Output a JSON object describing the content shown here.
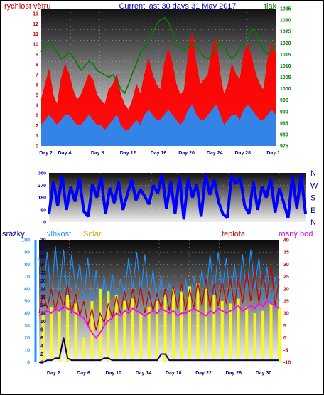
{
  "chart_data": [
    {
      "type": "line",
      "title": "Current last 30 days 31 May 2017",
      "left_axis_label": "rychlost větru",
      "right_axis_label": "tlak",
      "left_ticks": [
        "0",
        "1",
        "2",
        "3",
        "4",
        "5",
        "6",
        "7",
        "8",
        "9",
        "10",
        "11",
        "12",
        "13"
      ],
      "right_ticks": [
        "975",
        "980",
        "985",
        "990",
        "995",
        "1000",
        "1005",
        "1010",
        "1015",
        "1020",
        "1025",
        "1030",
        "1035"
      ],
      "x_ticks": [
        "Day 2",
        "Day 4",
        "Day 8",
        "Day 12",
        "Day 16",
        "Day 20",
        "Day 24",
        "Day 28",
        "Day 1"
      ],
      "ylim_left": [
        0,
        13.5
      ],
      "ylim_right": [
        975,
        1035
      ],
      "grid": true,
      "series": [
        {
          "role": "wind-gust",
          "color": "#ff0000",
          "axis": "left",
          "values": [
            4.5,
            6,
            7.5,
            5,
            4,
            6.5,
            8,
            7,
            5.5,
            4.5,
            5,
            6,
            7,
            6.5,
            5,
            4.5,
            4,
            5.5,
            6,
            7,
            5,
            4,
            3.5,
            4.5,
            6,
            5,
            7,
            8.5,
            7,
            6,
            5.5,
            8,
            9.5,
            8,
            6,
            5,
            5.5,
            9,
            11,
            8,
            6,
            6.5,
            7,
            9.5,
            10.5,
            7,
            5,
            6,
            8,
            7,
            6.5,
            9,
            10,
            8.5,
            7,
            6,
            5.5,
            8.5,
            10,
            9
          ]
        },
        {
          "role": "wind-average",
          "color": "#1e90ff",
          "axis": "left",
          "values": [
            2,
            2.5,
            3,
            2.5,
            2,
            2.5,
            3,
            3,
            2.5,
            2,
            2,
            2.5,
            3,
            2.5,
            2,
            2,
            1.5,
            2,
            2.5,
            3,
            2,
            1.5,
            1.5,
            2,
            2.5,
            2,
            3,
            3.5,
            3,
            2.5,
            2.5,
            3,
            3.5,
            3,
            2.5,
            2,
            2.5,
            3.5,
            4,
            3,
            2.5,
            2.5,
            3,
            3.5,
            4,
            3,
            2,
            2.5,
            3,
            3,
            2.5,
            3.5,
            4,
            3.5,
            3,
            2.5,
            2.5,
            3,
            3.5,
            3
          ]
        },
        {
          "role": "pressure",
          "color": "#008000",
          "axis": "right",
          "values": [
            1016,
            1019,
            1020,
            1018,
            1016,
            1013,
            1014,
            1016,
            1014,
            1011,
            1008,
            1010,
            1012,
            1011,
            1008,
            1007,
            1006,
            1005,
            1006,
            1004,
            1000,
            998,
            1002,
            1007,
            1011,
            1016,
            1018,
            1021,
            1024,
            1028,
            1030,
            1031,
            1029,
            1025,
            1020,
            1018,
            1017,
            1018,
            1019,
            1018,
            1016,
            1014,
            1013,
            1015,
            1018,
            1020,
            1019,
            1015,
            1013,
            1015,
            1018,
            1019,
            1022,
            1026,
            1025,
            1020,
            1017,
            1015,
            1017,
            1019
          ]
        }
      ]
    },
    {
      "type": "line",
      "title": "",
      "left_ticks": [
        "0",
        "90",
        "180",
        "270",
        "360"
      ],
      "right_labels": [
        "N",
        "W",
        "S",
        "E",
        "N"
      ],
      "ylim": [
        0,
        360
      ],
      "series": [
        {
          "role": "wind-direction",
          "color": "#0000ff",
          "values": [
            60,
            300,
            120,
            340,
            90,
            260,
            150,
            320,
            80,
            40,
            280,
            180,
            330,
            60,
            250,
            140,
            300,
            90,
            200,
            310,
            160,
            240,
            190,
            130,
            270,
            210,
            350,
            100,
            300,
            60,
            340,
            20,
            320,
            180,
            280,
            40,
            350,
            200,
            310,
            150,
            60,
            30,
            340,
            280,
            330,
            120,
            60,
            300,
            90,
            260,
            180,
            320,
            70,
            250,
            140,
            30,
            340,
            100,
            350,
            60
          ]
        }
      ]
    },
    {
      "type": "line",
      "labels": {
        "rain": "srážky",
        "humidity": "vlhkost",
        "solar": "Solar",
        "temperature": "teplota",
        "dewpoint": "rosný bod"
      },
      "left_ticks": [
        "0",
        "10",
        "20",
        "30",
        "40",
        "50",
        "60",
        "70",
        "80",
        "90",
        "100"
      ],
      "rain_ticks": [
        "0",
        "2",
        "4",
        "6",
        "8",
        "10",
        "12",
        "14",
        "16",
        "18",
        "20",
        "22",
        "24",
        "26",
        "28",
        "30"
      ],
      "right_ticks": [
        "-10",
        "-5",
        "0",
        "5",
        "10",
        "15",
        "20",
        "25",
        "30",
        "35",
        "40"
      ],
      "x_ticks": [
        "Day 2",
        "Day 6",
        "Day 10",
        "Day 14",
        "Day 18",
        "Day 22",
        "Day 26",
        "Day 30"
      ],
      "ylim_left": [
        0,
        100
      ],
      "ylim_right": [
        -10,
        40
      ],
      "series": [
        {
          "role": "humidity",
          "color": "#1e90ff",
          "values": [
            85,
            55,
            90,
            50,
            95,
            55,
            92,
            52,
            88,
            60,
            80,
            50,
            85,
            45,
            75,
            40,
            70,
            45,
            72,
            50,
            68,
            55,
            85,
            60,
            90,
            55,
            88,
            50,
            75,
            45,
            70,
            40,
            65,
            45,
            60,
            42,
            68,
            48,
            70,
            50,
            75,
            52,
            88,
            55,
            90,
            58,
            85,
            50,
            80,
            52,
            88,
            55,
            92,
            60,
            85,
            50,
            78,
            45,
            70,
            50
          ]
        },
        {
          "role": "solar",
          "color": "#ffff00",
          "values": [
            0,
            40,
            0,
            45,
            0,
            42,
            0,
            55,
            0,
            48,
            0,
            20,
            0,
            50,
            0,
            60,
            0,
            58,
            0,
            55,
            0,
            50,
            0,
            52,
            0,
            40,
            0,
            45,
            0,
            50,
            0,
            55,
            0,
            60,
            0,
            58,
            0,
            62,
            0,
            65,
            0,
            60,
            0,
            55,
            0,
            50,
            0,
            48,
            0,
            52,
            0,
            45,
            0,
            40,
            0,
            42,
            0,
            48,
            0,
            45
          ]
        },
        {
          "role": "temperature",
          "color": "#cc0000",
          "axis": "right",
          "values": [
            10,
            18,
            12,
            20,
            11,
            19,
            12,
            22,
            10,
            18,
            9,
            15,
            5,
            12,
            3,
            10,
            6,
            14,
            8,
            17,
            10,
            19,
            11,
            20,
            12,
            21,
            10,
            19,
            11,
            18,
            12,
            20,
            11,
            21,
            12,
            22,
            11,
            20,
            12,
            23,
            13,
            24,
            12,
            22,
            13,
            23,
            14,
            24,
            13,
            25,
            14,
            27,
            15,
            28,
            14,
            26,
            16,
            30,
            13,
            24
          ]
        },
        {
          "role": "dewpoint",
          "color": "#ff00ff",
          "axis": "right",
          "values": [
            9,
            10,
            11,
            10,
            12,
            11,
            13,
            12,
            11,
            10,
            9,
            8,
            5,
            2,
            0,
            2,
            5,
            7,
            8,
            10,
            9,
            11,
            10,
            12,
            11,
            10,
            9,
            10,
            11,
            10,
            12,
            11,
            10,
            11,
            9,
            10,
            10,
            11,
            12,
            11,
            10,
            9,
            11,
            10,
            12,
            11,
            10,
            11,
            12,
            13,
            11,
            12,
            13,
            12,
            14,
            13,
            15,
            14,
            13,
            12
          ]
        },
        {
          "role": "rain",
          "color": "#000080",
          "axis": "rain",
          "values": [
            0,
            0,
            0.5,
            0.5,
            1,
            1,
            6,
            1,
            0.5,
            0.5,
            0.5,
            0.5,
            0.5,
            0.5,
            0.5,
            0.5,
            1,
            1,
            0.5,
            0.5,
            0.5,
            0.5,
            0.5,
            0.5,
            0.5,
            0.5,
            0.5,
            0.5,
            0.5,
            0.5,
            2,
            2,
            0.5,
            0.5,
            0.5,
            0.5,
            0.5,
            0.5,
            0.5,
            0.5,
            0.5,
            0.5,
            0.5,
            0.5,
            0.5,
            0.5,
            0.5,
            0.5,
            0.5,
            0.5,
            0.5,
            0.5,
            0.5,
            0.5,
            0.5,
            0.5,
            0.5,
            0.5,
            0.5,
            0.5
          ]
        }
      ]
    }
  ]
}
